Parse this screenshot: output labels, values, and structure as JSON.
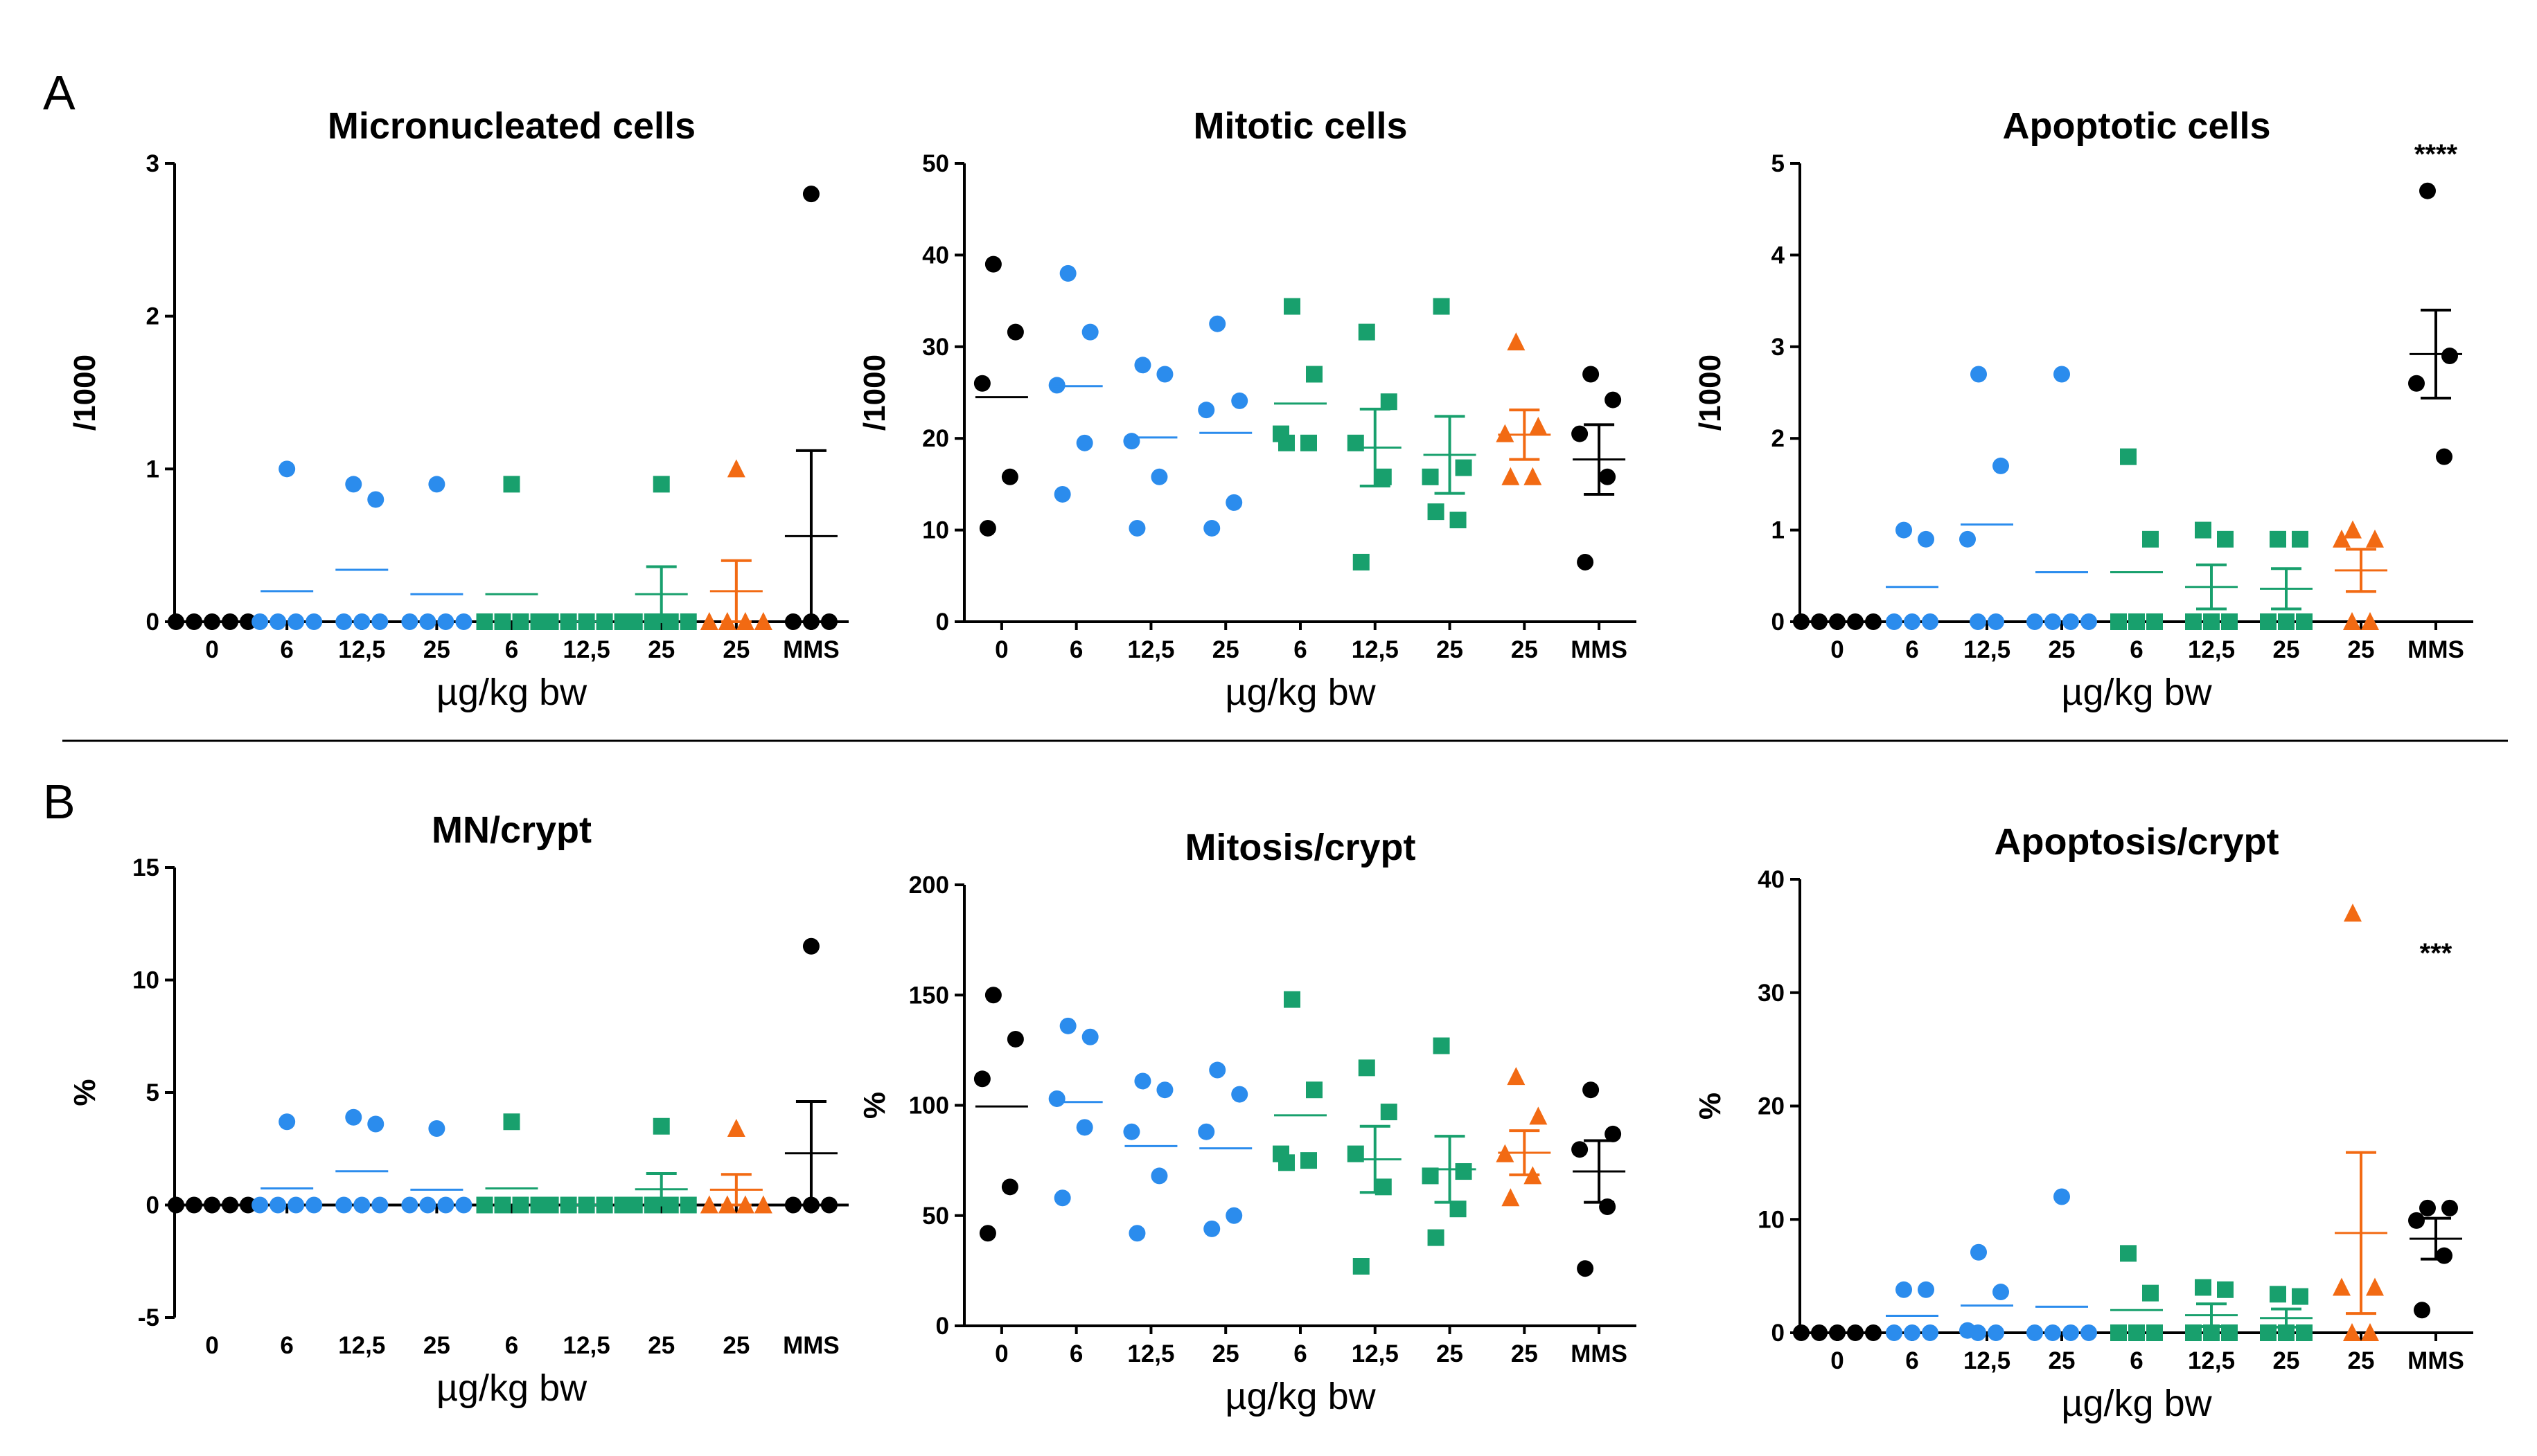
{
  "colors": {
    "control": "#000000",
    "substanceA": "#2b8ced",
    "substanceB": "#18a06d",
    "substanceC": "#f26a13",
    "mms": "#000000"
  },
  "panel_labels": [
    "A",
    "B"
  ],
  "chart_data": [
    {
      "type": "scatter",
      "title": "Micronucleated cells",
      "ylabel": "/1000",
      "xlabel": "µg/kg bw",
      "categories": [
        "0",
        "6",
        "12,5",
        "25",
        "6",
        "12,5",
        "25",
        "25",
        "MMS"
      ],
      "yticks": [
        "0",
        "1",
        "2",
        "3"
      ],
      "ylim": [
        0,
        3
      ],
      "significance": "",
      "groups": [
        {
          "color": "control",
          "marker": "circle",
          "values": [
            0,
            0,
            0,
            0,
            0
          ],
          "mean": 0,
          "sem": 0
        },
        {
          "color": "substanceA",
          "marker": "circle",
          "values": [
            1.0,
            0,
            0,
            0,
            0
          ],
          "mean": 0.2,
          "sem": 0
        },
        {
          "color": "substanceA",
          "marker": "circle",
          "values": [
            0.9,
            0.8,
            0,
            0,
            0
          ],
          "mean": 0.34,
          "sem": 0
        },
        {
          "color": "substanceA",
          "marker": "circle",
          "values": [
            0.9,
            0,
            0,
            0,
            0
          ],
          "mean": 0.18,
          "sem": 0
        },
        {
          "color": "substanceB",
          "marker": "square",
          "values": [
            0.9,
            0,
            0,
            0,
            0
          ],
          "mean": 0.18,
          "sem": 0
        },
        {
          "color": "substanceB",
          "marker": "square",
          "values": [
            0,
            0,
            0,
            0,
            0
          ],
          "mean": 0,
          "sem": 0
        },
        {
          "color": "substanceB",
          "marker": "square",
          "values": [
            0.9,
            0,
            0,
            0,
            0
          ],
          "mean": 0.18,
          "sem": 0.18
        },
        {
          "color": "substanceC",
          "marker": "triangle",
          "values": [
            1.0,
            0,
            0,
            0,
            0
          ],
          "mean": 0.2,
          "sem": 0.2
        },
        {
          "color": "mms",
          "marker": "circle",
          "values": [
            2.8,
            0,
            0,
            0
          ],
          "mean": 0.56,
          "sem": 0.56
        }
      ]
    },
    {
      "type": "scatter",
      "title": "Mitotic cells",
      "ylabel": "/1000",
      "xlabel": "µg/kg bw",
      "categories": [
        "0",
        "6",
        "12,5",
        "25",
        "6",
        "12,5",
        "25",
        "25",
        "MMS"
      ],
      "yticks": [
        "0",
        "10",
        "20",
        "30",
        "40",
        "50"
      ],
      "ylim": [
        0,
        50
      ],
      "significance": "",
      "groups": [
        {
          "color": "control",
          "marker": "circle",
          "values": [
            39,
            31.6,
            26,
            15.8,
            10.2
          ],
          "mean": 24.5,
          "sem": 0
        },
        {
          "color": "substanceA",
          "marker": "circle",
          "values": [
            38,
            31.6,
            25.8,
            19.5,
            13.9
          ],
          "mean": 25.7,
          "sem": 0
        },
        {
          "color": "substanceA",
          "marker": "circle",
          "values": [
            28,
            27,
            19.7,
            15.8,
            10.2
          ],
          "mean": 20.1,
          "sem": 0
        },
        {
          "color": "substanceA",
          "marker": "circle",
          "values": [
            32.5,
            24.1,
            23.1,
            13,
            10.2
          ],
          "mean": 20.6,
          "sem": 0
        },
        {
          "color": "substanceB",
          "marker": "square",
          "values": [
            34.4,
            27,
            20.5,
            19.5,
            19.5
          ],
          "mean": 23.8,
          "sem": 0
        },
        {
          "color": "substanceB",
          "marker": "square",
          "values": [
            31.6,
            24,
            19.5,
            15.8,
            6.5
          ],
          "mean": 19.0,
          "sem": 4.2
        },
        {
          "color": "substanceB",
          "marker": "square",
          "values": [
            34.4,
            16.8,
            15.8,
            11.1,
            12
          ],
          "mean": 18.2,
          "sem": 4.2
        },
        {
          "color": "substanceC",
          "marker": "triangle",
          "values": [
            30.5,
            21.3,
            20.5,
            15.8,
            15.8
          ],
          "mean": 20.4,
          "sem": 2.7
        },
        {
          "color": "mms",
          "marker": "circle",
          "values": [
            27,
            24.2,
            20.5,
            15.8,
            6.5
          ],
          "mean": 17.7,
          "sem": 3.8
        }
      ]
    },
    {
      "type": "scatter",
      "title": "Apoptotic cells",
      "ylabel": "/1000",
      "xlabel": "µg/kg bw",
      "categories": [
        "0",
        "6",
        "12,5",
        "25",
        "6",
        "12,5",
        "25",
        "25",
        "MMS"
      ],
      "yticks": [
        "0",
        "1",
        "2",
        "3",
        "4",
        "5"
      ],
      "ylim": [
        0,
        5
      ],
      "significance": "****",
      "groups": [
        {
          "color": "control",
          "marker": "circle",
          "values": [
            0,
            0,
            0,
            0,
            0
          ],
          "mean": 0,
          "sem": 0
        },
        {
          "color": "substanceA",
          "marker": "circle",
          "values": [
            1.0,
            0.9,
            0,
            0,
            0
          ],
          "mean": 0.38,
          "sem": 0
        },
        {
          "color": "substanceA",
          "marker": "circle",
          "values": [
            2.7,
            1.7,
            0.9,
            0,
            0
          ],
          "mean": 1.06,
          "sem": 0
        },
        {
          "color": "substanceA",
          "marker": "circle",
          "values": [
            2.7,
            0,
            0,
            0,
            0
          ],
          "mean": 0.54,
          "sem": 0
        },
        {
          "color": "substanceB",
          "marker": "square",
          "values": [
            1.8,
            0.9,
            0,
            0,
            0
          ],
          "mean": 0.54,
          "sem": 0
        },
        {
          "color": "substanceB",
          "marker": "square",
          "values": [
            1.0,
            0.9,
            0,
            0,
            0
          ],
          "mean": 0.38,
          "sem": 0.24
        },
        {
          "color": "substanceB",
          "marker": "square",
          "values": [
            0.9,
            0.9,
            0,
            0,
            0
          ],
          "mean": 0.36,
          "sem": 0.22
        },
        {
          "color": "substanceC",
          "marker": "triangle",
          "values": [
            1.0,
            0.9,
            0.9,
            0,
            0
          ],
          "mean": 0.56,
          "sem": 0.23
        },
        {
          "color": "mms",
          "marker": "circle",
          "values": [
            4.7,
            2.9,
            2.6,
            1.8
          ],
          "mean": 2.92,
          "sem": 0.48
        }
      ]
    },
    {
      "type": "scatter",
      "title": "MN/crypt",
      "ylabel": "%",
      "xlabel": "µg/kg bw",
      "categories": [
        "0",
        "6",
        "12,5",
        "25",
        "6",
        "12,5",
        "25",
        "25",
        "MMS"
      ],
      "yticks": [
        "-5",
        "0",
        "5",
        "10",
        "15"
      ],
      "ylim": [
        -5,
        15
      ],
      "significance": "",
      "groups": [
        {
          "color": "control",
          "marker": "circle",
          "values": [
            0,
            0,
            0,
            0,
            0
          ],
          "mean": 0,
          "sem": 0
        },
        {
          "color": "substanceA",
          "marker": "circle",
          "values": [
            3.7,
            0,
            0,
            0,
            0
          ],
          "mean": 0.74,
          "sem": 0
        },
        {
          "color": "substanceA",
          "marker": "circle",
          "values": [
            3.9,
            3.6,
            0,
            0,
            0
          ],
          "mean": 1.5,
          "sem": 0
        },
        {
          "color": "substanceA",
          "marker": "circle",
          "values": [
            3.4,
            0,
            0,
            0,
            0
          ],
          "mean": 0.68,
          "sem": 0
        },
        {
          "color": "substanceB",
          "marker": "square",
          "values": [
            3.7,
            0,
            0,
            0,
            0
          ],
          "mean": 0.74,
          "sem": 0
        },
        {
          "color": "substanceB",
          "marker": "square",
          "values": [
            0,
            0,
            0,
            0,
            0
          ],
          "mean": 0,
          "sem": 0
        },
        {
          "color": "substanceB",
          "marker": "square",
          "values": [
            3.5,
            0,
            0,
            0,
            0
          ],
          "mean": 0.7,
          "sem": 0.7
        },
        {
          "color": "substanceC",
          "marker": "triangle",
          "values": [
            3.4,
            0,
            0,
            0,
            0
          ],
          "mean": 0.68,
          "sem": 0.68
        },
        {
          "color": "mms",
          "marker": "circle",
          "values": [
            11.5,
            0,
            0,
            0
          ],
          "mean": 2.3,
          "sem": 2.3
        }
      ]
    },
    {
      "type": "scatter",
      "title": "Mitosis/crypt",
      "ylabel": "%",
      "xlabel": "µg/kg bw",
      "categories": [
        "0",
        "6",
        "12,5",
        "25",
        "6",
        "12,5",
        "25",
        "25",
        "MMS"
      ],
      "yticks": [
        "0",
        "50",
        "100",
        "150",
        "200"
      ],
      "ylim": [
        0,
        200
      ],
      "significance": "",
      "groups": [
        {
          "color": "control",
          "marker": "circle",
          "values": [
            150,
            130,
            112,
            63,
            42
          ],
          "mean": 99.5,
          "sem": 0
        },
        {
          "color": "substanceA",
          "marker": "circle",
          "values": [
            136,
            131,
            103,
            90,
            58
          ],
          "mean": 101.5,
          "sem": 0
        },
        {
          "color": "substanceA",
          "marker": "circle",
          "values": [
            111,
            107,
            88,
            68,
            42
          ],
          "mean": 81.5,
          "sem": 0
        },
        {
          "color": "substanceA",
          "marker": "circle",
          "values": [
            116,
            105,
            88,
            50,
            44
          ],
          "mean": 80.5,
          "sem": 0
        },
        {
          "color": "substanceB",
          "marker": "square",
          "values": [
            148,
            107,
            78,
            75,
            74
          ],
          "mean": 95.5,
          "sem": 0
        },
        {
          "color": "substanceB",
          "marker": "square",
          "values": [
            117,
            97,
            78,
            63,
            27
          ],
          "mean": 75.5,
          "sem": 15
        },
        {
          "color": "substanceB",
          "marker": "square",
          "values": [
            127,
            70,
            68,
            53,
            40
          ],
          "mean": 71,
          "sem": 15
        },
        {
          "color": "substanceC",
          "marker": "triangle",
          "values": [
            113,
            95,
            78,
            68,
            58
          ],
          "mean": 78.5,
          "sem": 10
        },
        {
          "color": "mms",
          "marker": "circle",
          "values": [
            107,
            87,
            80,
            54,
            26
          ],
          "mean": 70,
          "sem": 14
        }
      ]
    },
    {
      "type": "scatter",
      "title": "Apoptosis/crypt",
      "ylabel": "%",
      "xlabel": "µg/kg bw",
      "categories": [
        "0",
        "6",
        "12,5",
        "25",
        "6",
        "12,5",
        "25",
        "25",
        "MMS"
      ],
      "yticks": [
        "0",
        "10",
        "20",
        "30",
        "40"
      ],
      "ylim": [
        0,
        40
      ],
      "significance": "***",
      "groups": [
        {
          "color": "control",
          "marker": "circle",
          "values": [
            0,
            0,
            0,
            0,
            0
          ],
          "mean": 0,
          "sem": 0
        },
        {
          "color": "substanceA",
          "marker": "circle",
          "values": [
            3.8,
            3.8,
            0,
            0,
            0
          ],
          "mean": 1.5,
          "sem": 0
        },
        {
          "color": "substanceA",
          "marker": "circle",
          "values": [
            7.1,
            3.6,
            0.2,
            0,
            0
          ],
          "mean": 2.4,
          "sem": 0
        },
        {
          "color": "substanceA",
          "marker": "circle",
          "values": [
            12,
            0,
            0,
            0,
            0
          ],
          "mean": 2.3,
          "sem": 0
        },
        {
          "color": "substanceB",
          "marker": "square",
          "values": [
            7,
            3.5,
            0,
            0,
            0
          ],
          "mean": 2.0,
          "sem": 0
        },
        {
          "color": "substanceB",
          "marker": "square",
          "values": [
            4,
            3.8,
            0,
            0,
            0
          ],
          "mean": 1.55,
          "sem": 1.0
        },
        {
          "color": "substanceB",
          "marker": "square",
          "values": [
            3.4,
            3.2,
            0,
            0,
            0
          ],
          "mean": 1.3,
          "sem": 0.8
        },
        {
          "color": "substanceC",
          "marker": "triangle",
          "values": [
            37,
            4,
            4,
            0,
            0
          ],
          "mean": 8.8,
          "sem": 7.1
        },
        {
          "color": "mms",
          "marker": "circle",
          "values": [
            11,
            11,
            9.9,
            6.8,
            2
          ],
          "mean": 8.3,
          "sem": 1.8
        }
      ]
    }
  ]
}
